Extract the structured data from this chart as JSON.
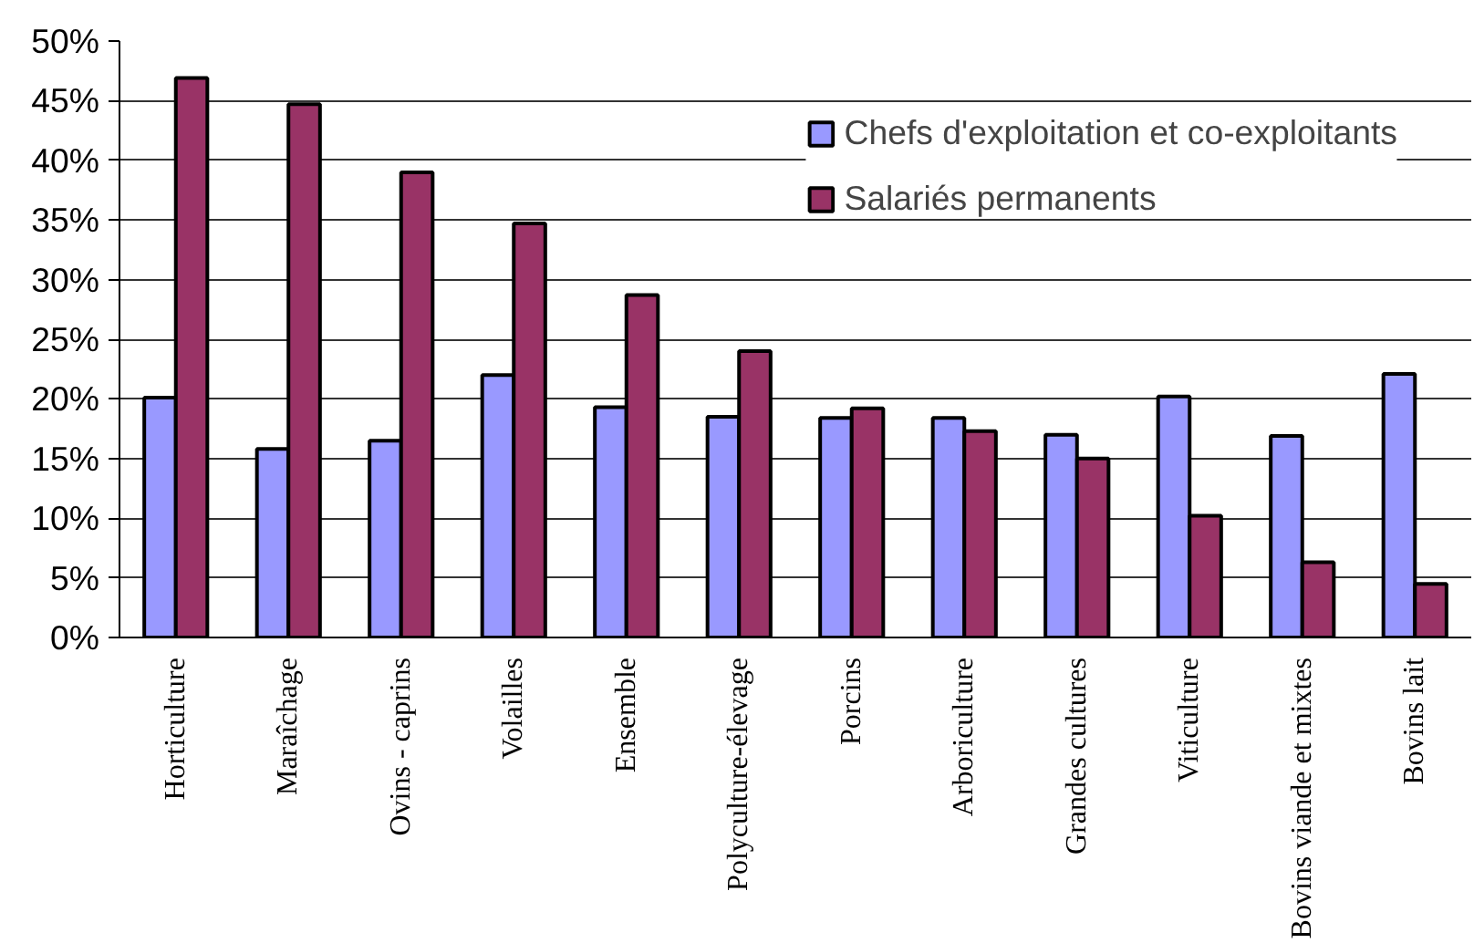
{
  "chart_data": {
    "type": "bar",
    "categories": [
      "Horticulture",
      "Maraîchage",
      "Ovins - caprins",
      "Volailles",
      "Ensemble",
      "Polyculture-élevage",
      "Porcins",
      "Arboriculture",
      "Grandes cultures",
      "Viticulture",
      "Bovins viande et mixtes",
      "Bovins lait"
    ],
    "series": [
      {
        "name": "Chefs d'exploitation et co-exploitants",
        "color": "#9999ff",
        "values": [
          20.1,
          15.8,
          16.5,
          22.0,
          19.3,
          18.5,
          18.4,
          18.4,
          17.0,
          20.2,
          16.9,
          22.1
        ]
      },
      {
        "name": "Salariés permanents",
        "color": "#993366",
        "values": [
          46.9,
          44.7,
          39.0,
          34.7,
          28.7,
          24.0,
          19.2,
          17.3,
          15.0,
          10.2,
          6.3,
          4.5
        ]
      }
    ],
    "ylim": [
      0,
      50
    ],
    "yticks": [
      {
        "value": 0,
        "label": "0%"
      },
      {
        "value": 5,
        "label": "5%"
      },
      {
        "value": 10,
        "label": "10%"
      },
      {
        "value": 15,
        "label": "15%"
      },
      {
        "value": 20,
        "label": "20%"
      },
      {
        "value": 25,
        "label": "25%"
      },
      {
        "value": 30,
        "label": "30%"
      },
      {
        "value": 35,
        "label": "35%"
      },
      {
        "value": 40,
        "label": "40%"
      },
      {
        "value": 45,
        "label": "45%"
      },
      {
        "value": 50,
        "label": "50%"
      }
    ],
    "grid": "y",
    "legend": "top right"
  }
}
